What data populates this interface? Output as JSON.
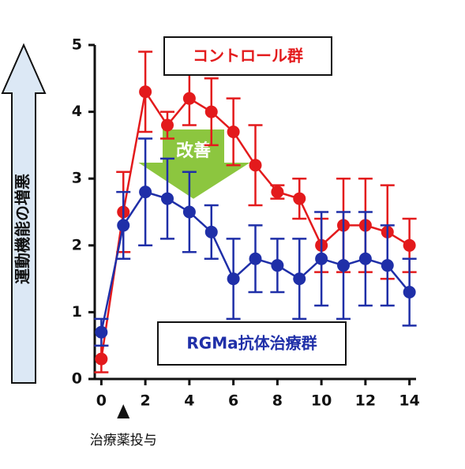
{
  "chart_data": {
    "type": "line",
    "x": [
      0,
      1,
      2,
      3,
      4,
      5,
      6,
      7,
      8,
      9,
      10,
      11,
      12,
      13,
      14
    ],
    "series": [
      {
        "name": "コントロール群",
        "color": "#e31a1c",
        "values": [
          0.3,
          2.5,
          4.3,
          3.8,
          4.2,
          4.0,
          3.7,
          3.2,
          2.8,
          2.7,
          2.0,
          2.3,
          2.3,
          2.2,
          2.0
        ],
        "errors": [
          0.2,
          0.6,
          0.6,
          0.2,
          0.4,
          0.5,
          0.5,
          0.6,
          0.1,
          0.3,
          0.4,
          0.7,
          0.7,
          0.7,
          0.4
        ]
      },
      {
        "name": "RGMa抗体治療群",
        "color": "#1f2fa8",
        "values": [
          0.7,
          2.3,
          2.8,
          2.7,
          2.5,
          2.2,
          1.5,
          1.8,
          1.7,
          1.5,
          1.8,
          1.7,
          1.8,
          1.7,
          1.3
        ],
        "errors": [
          0.2,
          0.5,
          0.8,
          0.6,
          0.6,
          0.4,
          0.6,
          0.5,
          0.4,
          0.6,
          0.7,
          0.8,
          0.7,
          0.6,
          0.5
        ]
      }
    ],
    "xlim": [
      -0.3,
      14.3
    ],
    "xticks": [
      0,
      2,
      4,
      6,
      8,
      10,
      12,
      14
    ],
    "ylim": [
      0,
      5
    ],
    "yticks": [
      0,
      1,
      2,
      3,
      4,
      5
    ],
    "annotations": {
      "y_arrow": "運動機能の増悪",
      "improvement": "改善",
      "treatment": "治療薬投与"
    }
  }
}
